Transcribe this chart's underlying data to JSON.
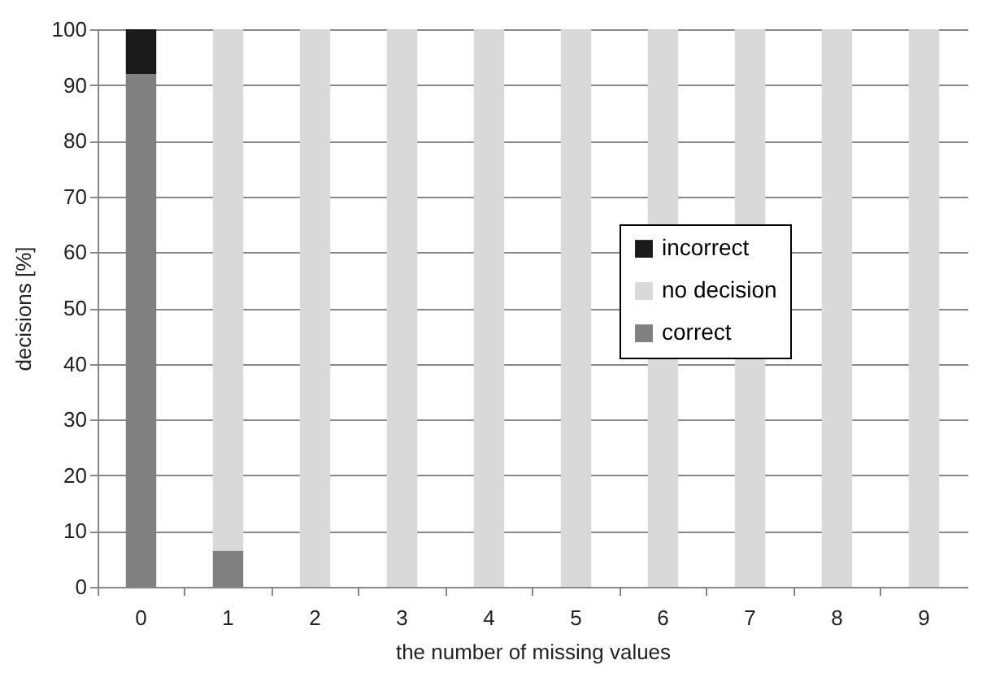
{
  "chart_data": {
    "type": "bar",
    "stacked": true,
    "xlabel": "the number of missing values",
    "ylabel": "decisions [%]",
    "categories": [
      "0",
      "1",
      "2",
      "3",
      "4",
      "5",
      "6",
      "7",
      "8",
      "9"
    ],
    "series": [
      {
        "name": "correct",
        "color": "#808080",
        "values": [
          92,
          6.5,
          0,
          0,
          0,
          0,
          0,
          0,
          0,
          0
        ]
      },
      {
        "name": "no decision",
        "color": "#d9d9d9",
        "values": [
          0,
          93.5,
          100,
          100,
          100,
          100,
          100,
          100,
          100,
          100
        ]
      },
      {
        "name": "incorrect",
        "color": "#1a1a1a",
        "values": [
          8,
          0,
          0,
          0,
          0,
          0,
          0,
          0,
          0,
          0
        ]
      }
    ],
    "ylim": [
      0,
      100
    ],
    "yticks": [
      0,
      10,
      20,
      30,
      40,
      50,
      60,
      70,
      80,
      90,
      100
    ],
    "grid": "y",
    "legend": "right"
  }
}
